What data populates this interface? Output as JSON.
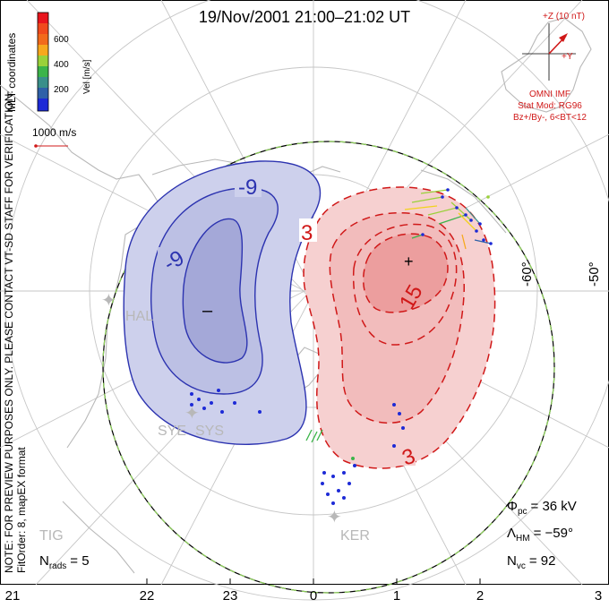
{
  "title": "19/Nov/2001 21:00–21:02 UT",
  "coords_label": "MLT coordinates",
  "disclaimer": "NOTE: FOR PREVIEW PURPOSES ONLY. PLEASE CONTACT VT-SD STAFF FOR VERIFICATION.",
  "fit_info": "FitOrder: 8, mapEX format",
  "colorbar": {
    "label": "Vel [m/s]",
    "ticks": [
      "600",
      "400",
      "200"
    ],
    "colors": [
      "#e8141c",
      "#f26a1b",
      "#f7a81d",
      "#f2d21c",
      "#9ad13a",
      "#3cb44a",
      "#3a8f8a",
      "#2f61a8",
      "#1d2ad6"
    ]
  },
  "scale_vector": "1000 m/s",
  "imf": {
    "z_label": "+Z (10 nT)",
    "y_label": "+Y",
    "omni": "OMNI IMF",
    "stat_mod": "Stat Mod: RG96",
    "condition": "Bz+/By-, 6<BT<12"
  },
  "latitude_labels": [
    "-60°",
    "-50°"
  ],
  "contours": {
    "neg_label": "-9",
    "pos_labels": [
      "3",
      "15"
    ],
    "pos_label_bottom": "3",
    "min_marker": "–",
    "max_marker": "+"
  },
  "stations": [
    "HAL",
    "SYE",
    "SYS",
    "TIG",
    "KER"
  ],
  "stats": {
    "phi_label": "Φ",
    "phi_sub": "pc",
    "phi_value": "= 36 kV",
    "lambda_label": "Λ",
    "lambda_sub": "HM",
    "lambda_value": "= −59°",
    "nvc_label": "N",
    "nvc_sub": "vc",
    "nvc_value": "= 92",
    "nrads_label": "N",
    "nrads_sub": "rads",
    "nrads_value": "= 5"
  },
  "mlt_ticks": [
    "21",
    "22",
    "23",
    "0",
    "1",
    "2",
    "3"
  ],
  "colors": {
    "negative_fill": "#c8cbea",
    "negative_core": "#a9add9",
    "negative_line": "#2c33b0",
    "positive_fill": "#f5cfcf",
    "positive_core": "#ec9e9e",
    "positive_line": "#d01818",
    "grid": "#c4c4c4",
    "coast": "#b4b4b4",
    "hmb_dash": "#8fd35a"
  }
}
